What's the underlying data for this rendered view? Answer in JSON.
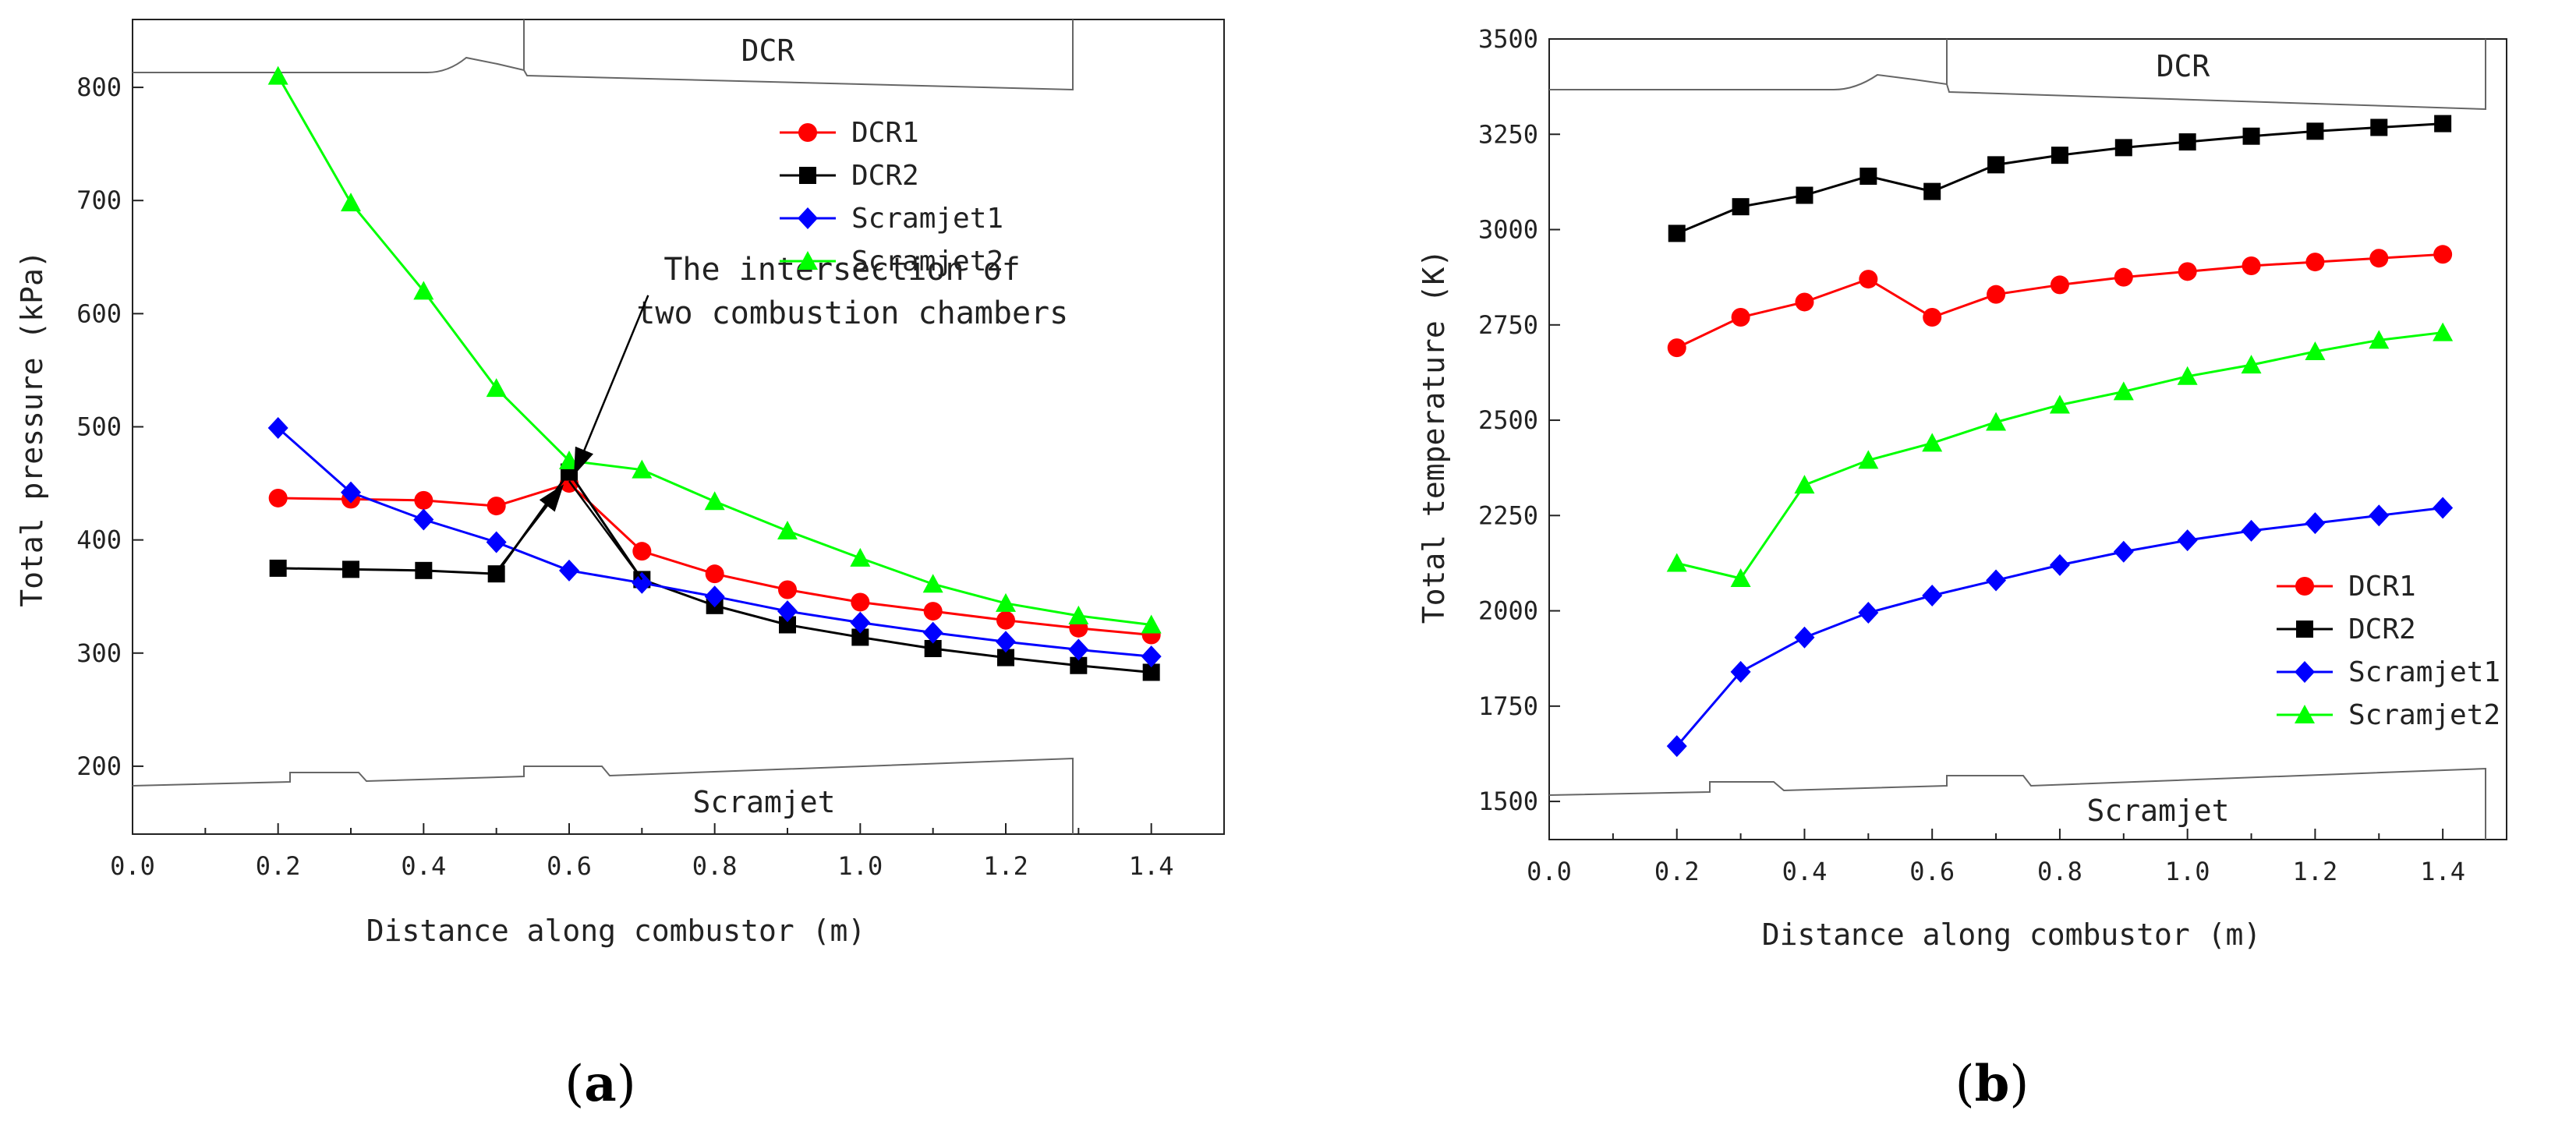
{
  "chart_data": [
    {
      "id": "a",
      "type": "line",
      "panel_label": "a",
      "xlabel": "Distance along combustor (m)",
      "ylabel": "Total pressure (kPa)",
      "xlim": [
        0.0,
        1.5
      ],
      "ylim": [
        140,
        860
      ],
      "xticks": [
        0.0,
        0.2,
        0.4,
        0.6,
        0.8,
        1.0,
        1.2,
        1.4
      ],
      "xtick_labels": [
        "0.0",
        "0.2",
        "0.4",
        "0.6",
        "0.8",
        "1.0",
        "1.2",
        "1.4"
      ],
      "yticks": [
        200,
        300,
        400,
        500,
        600,
        700,
        800
      ],
      "ytick_labels": [
        "200",
        "300",
        "400",
        "500",
        "600",
        "700",
        "800"
      ],
      "grid": false,
      "legend_position": "top-right",
      "x": [
        0.2,
        0.3,
        0.4,
        0.5,
        0.6,
        0.7,
        0.8,
        0.9,
        1.0,
        1.1,
        1.2,
        1.3,
        1.4
      ],
      "series": [
        {
          "name": "DCR1",
          "color": "#ff0000",
          "marker": "circle",
          "values": [
            437,
            436,
            435,
            430,
            450,
            390,
            370,
            356,
            345,
            337,
            329,
            322,
            316
          ]
        },
        {
          "name": "DCR2",
          "color": "#000000",
          "marker": "square",
          "values": [
            375,
            374,
            373,
            370,
            460,
            365,
            342,
            325,
            314,
            304,
            296,
            289,
            283
          ]
        },
        {
          "name": "Scramjet1",
          "color": "#0000ff",
          "marker": "diamond",
          "values": [
            499,
            442,
            418,
            398,
            373,
            362,
            350,
            337,
            327,
            318,
            310,
            303,
            297
          ]
        },
        {
          "name": "Scramjet2",
          "color": "#00ff00",
          "marker": "triangle",
          "values": [
            810,
            698,
            620,
            534,
            470,
            462,
            434,
            408,
            384,
            361,
            344,
            333,
            325
          ]
        }
      ],
      "annotations": [
        {
          "lines": [
            "The intersection of",
            "two combustion chambers"
          ],
          "text_x": 0.73,
          "text_y": 630,
          "arrows_to": [
            [
              0.6,
              452
            ],
            [
              0.6,
              460
            ]
          ],
          "arrow_from": [
            [
              0.55,
              570
            ],
            [
              0.63,
              515
            ]
          ]
        }
      ],
      "inlet_top_label": "DCR",
      "inlet_bottom_label": "Scramjet"
    },
    {
      "id": "b",
      "type": "line",
      "panel_label": "b",
      "xlabel": "Distance along combustor (m)",
      "ylabel": "Total temperature (K)",
      "xlim": [
        0.0,
        1.5
      ],
      "ylim": [
        1400,
        3500
      ],
      "xticks": [
        0.0,
        0.2,
        0.4,
        0.6,
        0.8,
        1.0,
        1.2,
        1.4
      ],
      "xtick_labels": [
        "0.0",
        "0.2",
        "0.4",
        "0.6",
        "0.8",
        "1.0",
        "1.2",
        "1.4"
      ],
      "yticks": [
        1500,
        1750,
        2000,
        2250,
        2500,
        2750,
        3000,
        3250,
        3500
      ],
      "ytick_labels": [
        "1500",
        "1750",
        "2000",
        "2250",
        "2500",
        "2750",
        "3000",
        "3250",
        "3500"
      ],
      "grid": false,
      "legend_position": "right",
      "x": [
        0.2,
        0.3,
        0.4,
        0.5,
        0.6,
        0.7,
        0.8,
        0.9,
        1.0,
        1.1,
        1.2,
        1.3,
        1.4
      ],
      "series": [
        {
          "name": "DCR1",
          "color": "#ff0000",
          "marker": "circle",
          "values": [
            2690,
            2770,
            2810,
            2870,
            2770,
            2830,
            2855,
            2875,
            2890,
            2905,
            2915,
            2925,
            2935
          ]
        },
        {
          "name": "DCR2",
          "color": "#000000",
          "marker": "square",
          "values": [
            2990,
            3060,
            3090,
            3140,
            3100,
            3170,
            3195,
            3215,
            3230,
            3245,
            3258,
            3268,
            3278
          ]
        },
        {
          "name": "Scramjet1",
          "color": "#0000ff",
          "marker": "diamond",
          "values": [
            1645,
            1840,
            1930,
            1995,
            2040,
            2080,
            2120,
            2155,
            2185,
            2210,
            2230,
            2250,
            2270
          ]
        },
        {
          "name": "Scramjet2",
          "color": "#00ff00",
          "marker": "triangle",
          "values": [
            2125,
            2085,
            2330,
            2395,
            2440,
            2495,
            2540,
            2575,
            2615,
            2645,
            2680,
            2710,
            2730
          ]
        }
      ],
      "annotations": [],
      "inlet_top_label": "DCR",
      "inlet_bottom_label": "Scramjet"
    }
  ]
}
